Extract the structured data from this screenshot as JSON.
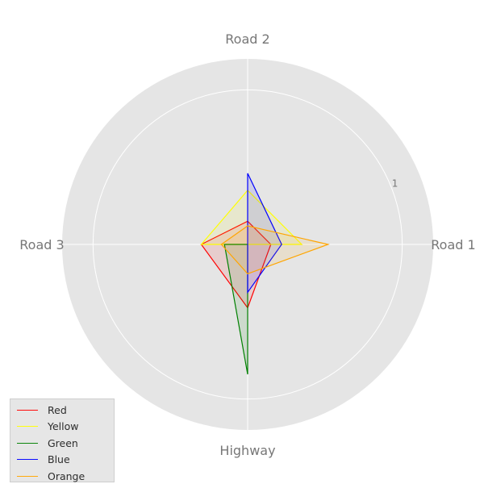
{
  "chart_data": {
    "type": "radar",
    "axes": [
      "Road 1",
      "Road 2",
      "Road 3",
      "Highway"
    ],
    "rlim": [
      0,
      1.2
    ],
    "rticks": [
      1
    ],
    "rtick_labels": [
      "1"
    ],
    "grid": true,
    "legend_position": "bottom-left",
    "series": [
      {
        "name": "Red",
        "color": "#ff0000",
        "values": [
          0.15,
          0.15,
          0.3,
          0.41
        ]
      },
      {
        "name": "Yellow",
        "color": "#ffff00",
        "values": [
          0.35,
          0.35,
          0.3,
          0.0
        ]
      },
      {
        "name": "Green",
        "color": "#008000",
        "values": [
          0.0,
          0.0,
          0.15,
          0.84
        ]
      },
      {
        "name": "Blue",
        "color": "#0000ff",
        "values": [
          0.22,
          0.46,
          0.0,
          0.31
        ]
      },
      {
        "name": "Orange",
        "color": "#ffa500",
        "values": [
          0.52,
          0.12,
          0.17,
          0.19
        ]
      }
    ]
  }
}
